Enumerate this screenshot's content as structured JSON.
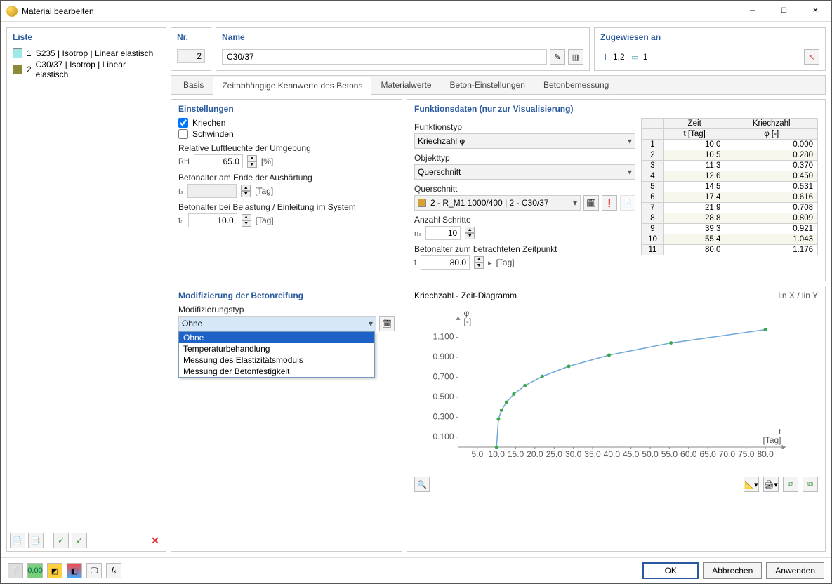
{
  "window": {
    "title": "Material bearbeiten"
  },
  "list": {
    "title": "Liste",
    "items": [
      {
        "num": "1",
        "label": "S235 | Isotrop | Linear elastisch",
        "color": "#a0e7e7"
      },
      {
        "num": "2",
        "label": "C30/37 | Isotrop | Linear elastisch",
        "color": "#8a8a3a"
      }
    ]
  },
  "header": {
    "nr": {
      "label": "Nr.",
      "value": "2"
    },
    "name": {
      "label": "Name",
      "value": "C30/37"
    },
    "assigned": {
      "label": "Zugewiesen an",
      "beam": "1,2",
      "shell": "1"
    }
  },
  "tabs": [
    "Basis",
    "Zeitabhängige Kennwerte des Betons",
    "Materialwerte",
    "Beton-Einstellungen",
    "Betonbemessung"
  ],
  "active_tab": 1,
  "settings": {
    "title": "Einstellungen",
    "kriechen": {
      "label": "Kriechen",
      "checked": true
    },
    "schwinden": {
      "label": "Schwinden",
      "checked": false
    },
    "rh": {
      "label": "Relative Luftfeuchte der Umgebung",
      "sym": "RH",
      "value": "65.0",
      "unit": "[%]"
    },
    "ts": {
      "label": "Betonalter am Ende der Aushärtung",
      "sym": "tₛ",
      "value": "",
      "unit": "[Tag]"
    },
    "t0": {
      "label": "Betonalter bei Belastung / Einleitung im System",
      "sym": "t₀",
      "value": "10.0",
      "unit": "[Tag]"
    }
  },
  "modif": {
    "title": "Modifizierung der Betonreifung",
    "type_label": "Modifizierungstyp",
    "selected": "Ohne",
    "options": [
      "Ohne",
      "Temperaturbehandlung",
      "Messung des Elastizitätsmoduls",
      "Messung der Betonfestigkeit"
    ]
  },
  "func": {
    "title": "Funktionsdaten (nur zur Visualisierung)",
    "ftype": {
      "label": "Funktionstyp",
      "value": "Kriechzahl φ"
    },
    "otype": {
      "label": "Objekttyp",
      "value": "Querschnitt"
    },
    "cs": {
      "label": "Querschnitt",
      "value": "2 - R_M1 1000/400 | 2 - C30/37"
    },
    "steps": {
      "label": "Anzahl Schritte",
      "sym": "nₛ",
      "value": "10"
    },
    "tage": {
      "label": "Betonalter zum betrachteten Zeitpunkt",
      "sym": "t",
      "value": "80.0",
      "unit": "[Tag]"
    },
    "table": {
      "cols": [
        "",
        "Zeit\nt [Tag]",
        "Kriechzahl\nφ [-]"
      ],
      "rows": [
        [
          "1",
          "10.0",
          "0.000"
        ],
        [
          "2",
          "10.5",
          "0.280"
        ],
        [
          "3",
          "11.3",
          "0.370"
        ],
        [
          "4",
          "12.6",
          "0.450"
        ],
        [
          "5",
          "14.5",
          "0.531"
        ],
        [
          "6",
          "17.4",
          "0.616"
        ],
        [
          "7",
          "21.9",
          "0.708"
        ],
        [
          "8",
          "28.8",
          "0.809"
        ],
        [
          "9",
          "39.3",
          "0.921"
        ],
        [
          "10",
          "55.4",
          "1.043"
        ],
        [
          "11",
          "80.0",
          "1.176"
        ]
      ]
    }
  },
  "chart": {
    "title": "Kriechzahl - Zeit-Diagramm",
    "mode": "lin X / lin Y",
    "y_label_top": "φ",
    "y_label_unit": "[-]",
    "x_label": "t",
    "x_label_unit": "[Tag]",
    "x_ticks": [
      5,
      10,
      15,
      20,
      25,
      30,
      35,
      40,
      45,
      50,
      55,
      60,
      65,
      70,
      75,
      80
    ],
    "y_ticks": [
      0.1,
      0.3,
      0.5,
      0.7,
      0.9,
      1.1
    ],
    "xlim": [
      0,
      85
    ],
    "ylim": [
      0,
      1.3
    ],
    "line_color": "#6fa8d8",
    "marker_color": "#3aa84a",
    "points": [
      [
        10.0,
        0.0
      ],
      [
        10.5,
        0.28
      ],
      [
        11.3,
        0.37
      ],
      [
        12.6,
        0.45
      ],
      [
        14.5,
        0.531
      ],
      [
        17.4,
        0.616
      ],
      [
        21.9,
        0.708
      ],
      [
        28.8,
        0.809
      ],
      [
        39.3,
        0.921
      ],
      [
        55.4,
        1.043
      ],
      [
        80.0,
        1.176
      ]
    ]
  },
  "buttons": {
    "ok": "OK",
    "cancel": "Abbrechen",
    "apply": "Anwenden"
  }
}
